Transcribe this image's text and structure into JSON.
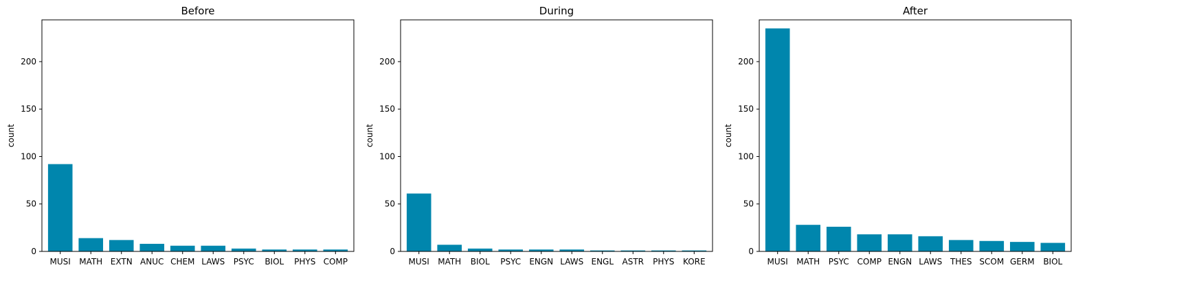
{
  "chart_data": [
    {
      "type": "bar",
      "title": "Before",
      "ylabel": "count",
      "ylim": [
        0,
        244
      ],
      "yticks": [
        0,
        50,
        100,
        150,
        200
      ],
      "categories": [
        "MUSI",
        "MATH",
        "EXTN",
        "ANUC",
        "CHEM",
        "LAWS",
        "PSYC",
        "BIOL",
        "PHYS",
        "COMP"
      ],
      "values": [
        92,
        14,
        12,
        8,
        6,
        6,
        3,
        2,
        2,
        2
      ],
      "color": "#0086ad"
    },
    {
      "type": "bar",
      "title": "During",
      "ylabel": "count",
      "ylim": [
        0,
        244
      ],
      "yticks": [
        0,
        50,
        100,
        150,
        200
      ],
      "categories": [
        "MUSI",
        "MATH",
        "BIOL",
        "PSYC",
        "ENGN",
        "LAWS",
        "ENGL",
        "ASTR",
        "PHYS",
        "KORE"
      ],
      "values": [
        61,
        7,
        3,
        2,
        2,
        2,
        1,
        1,
        1,
        1
      ],
      "color": "#0086ad"
    },
    {
      "type": "bar",
      "title": "After",
      "ylabel": "count",
      "ylim": [
        0,
        244
      ],
      "yticks": [
        0,
        50,
        100,
        150,
        200
      ],
      "categories": [
        "MUSI",
        "MATH",
        "PSYC",
        "COMP",
        "ENGN",
        "LAWS",
        "THES",
        "SCOM",
        "GERM",
        "BIOL"
      ],
      "values": [
        235,
        28,
        26,
        18,
        18,
        16,
        12,
        11,
        10,
        9
      ],
      "color": "#0086ad"
    }
  ]
}
